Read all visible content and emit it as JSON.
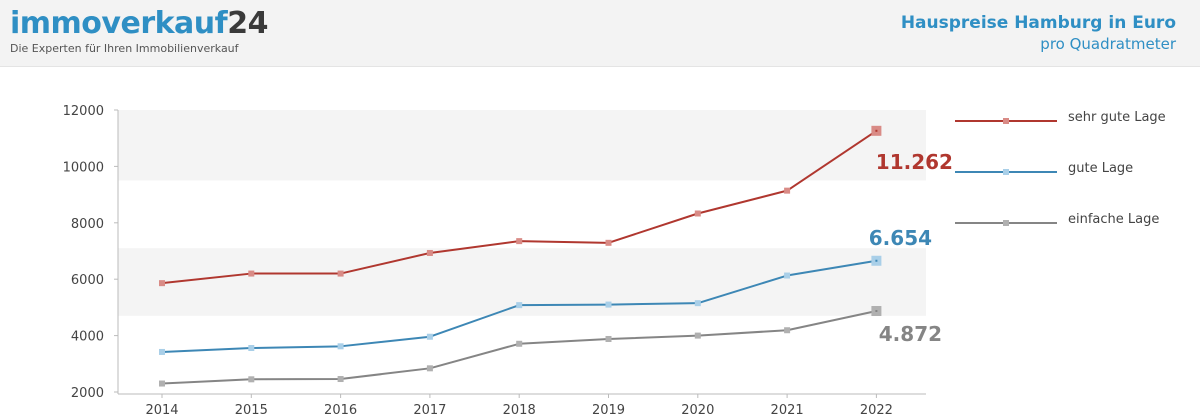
{
  "header": {
    "logo_main": "immoverkauf",
    "logo_accent": "24",
    "logo_tagline": "Die Experten für Ihren Immobilienverkauf",
    "title": "Hauspreise Hamburg in Euro",
    "subtitle": "pro Quadratmeter"
  },
  "chart_data": {
    "type": "line",
    "title": "Hauspreise Hamburg in Euro",
    "subtitle": "pro Quadratmeter",
    "x": [
      "2014",
      "2015",
      "2016",
      "2017",
      "2018",
      "2019",
      "2020",
      "2021",
      "2022"
    ],
    "ylim": [
      2000,
      12000
    ],
    "yticks": [
      "2000",
      "4000",
      "6000",
      "8000",
      "10000",
      "12000"
    ],
    "grid": false,
    "legend": "right",
    "series": [
      {
        "name": "sehr gute Lage",
        "color": "#b0372f",
        "marker": "#d98b86",
        "values": [
          5860,
          6200,
          6200,
          6930,
          7350,
          7290,
          8330,
          9140,
          11262
        ],
        "end_label": "11.262"
      },
      {
        "name": "gute Lage",
        "color": "#3d87b5",
        "marker": "#a9cfe8",
        "values": [
          3420,
          3560,
          3620,
          3960,
          5080,
          5100,
          5150,
          6130,
          6654
        ],
        "end_label": "6.654"
      },
      {
        "name": "einfache Lage",
        "color": "#858585",
        "marker": "#b0b0b0",
        "values": [
          2300,
          2450,
          2460,
          2840,
          3710,
          3880,
          4000,
          4190,
          4872
        ],
        "end_label": "4.872"
      }
    ]
  }
}
